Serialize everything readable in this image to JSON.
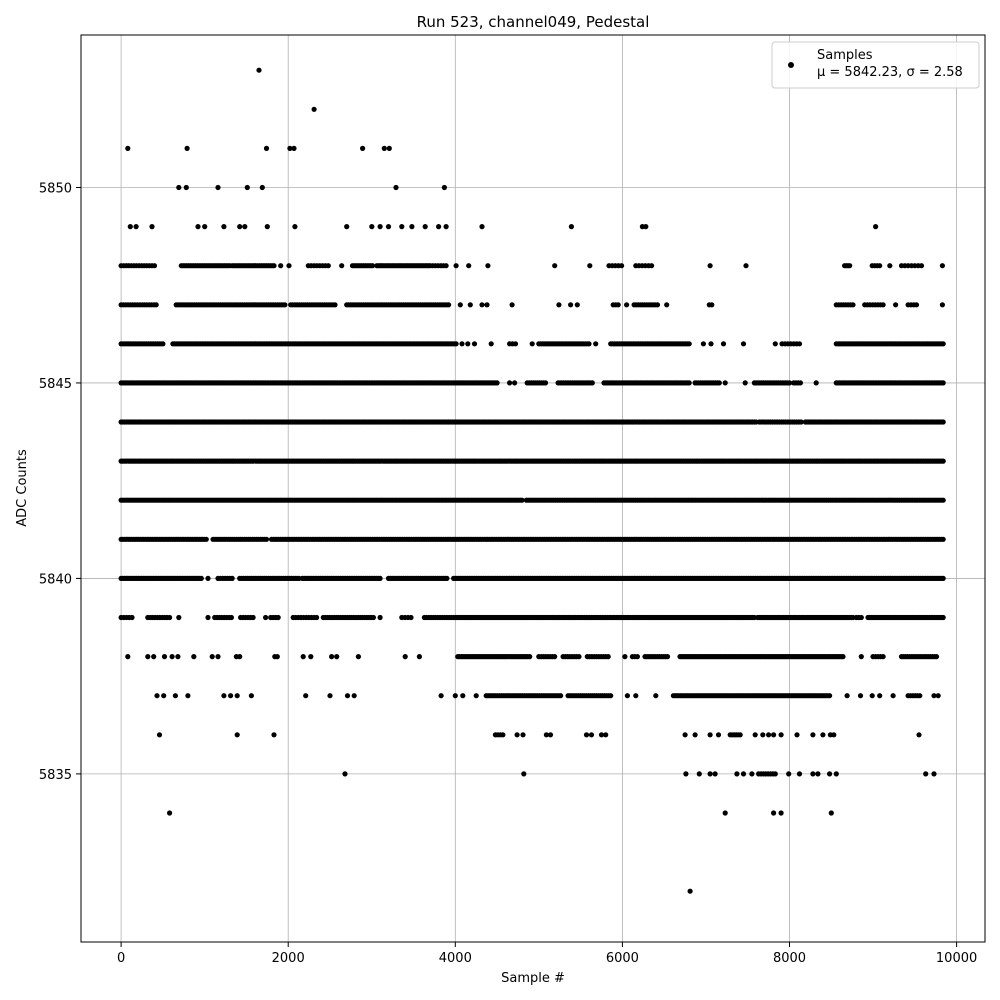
{
  "chart_data": {
    "type": "scatter",
    "title": "Run 523, channel049, Pedestal",
    "xlabel": "Sample #",
    "ylabel": "ADC Counts",
    "xlim": [
      -480,
      10340
    ],
    "ylim": [
      5830.7,
      5853.9
    ],
    "xticks": [
      0,
      2000,
      4000,
      6000,
      8000,
      10000
    ],
    "yticks": [
      5835,
      5840,
      5845,
      5850
    ],
    "grid": true,
    "legend": {
      "position": "top-right",
      "entries": [
        {
          "label": "Samples",
          "stats": "μ = 5842.23, σ = 2.58"
        }
      ]
    },
    "marker_color": "#000000",
    "levels": [
      {
        "y": 5853,
        "x": [
          1650
        ]
      },
      {
        "y": 5852,
        "x": [
          2310
        ]
      },
      {
        "y": 5851,
        "x": [
          80,
          790,
          1740,
          2020,
          2070,
          2890,
          3150,
          3210
        ]
      },
      {
        "y": 5850,
        "x": [
          690,
          780,
          1160,
          1510,
          1690,
          3290,
          3870
        ]
      },
      {
        "y": 5849,
        "x": [
          110,
          180,
          370,
          920,
          1000,
          1230,
          1420,
          1480,
          1750,
          2080,
          2700,
          3000,
          3100,
          3200,
          3360,
          3480,
          3640,
          3800,
          3890,
          4320,
          5390,
          6240,
          6280,
          9030
        ]
      },
      {
        "y": 5848,
        "x": [
          [
            0,
            400,
            14
          ],
          [
            720,
            1300,
            28
          ],
          [
            1330,
            1830,
            24
          ],
          1910,
          2010,
          [
            2240,
            2480,
            8
          ],
          2640,
          [
            2770,
            3010,
            12
          ],
          [
            3060,
            3700,
            32
          ],
          [
            3730,
            3890,
            6
          ],
          4010,
          4160,
          4390,
          5190,
          5610,
          [
            5840,
            5990,
            5
          ],
          [
            6160,
            6350,
            6
          ],
          7050,
          7480,
          [
            8660,
            8720,
            4
          ],
          [
            8990,
            9080,
            4
          ],
          9200,
          [
            9340,
            9580,
            7
          ],
          9830
        ]
      },
      {
        "y": 5847,
        "x": [
          [
            0,
            420,
            16
          ],
          [
            660,
            1960,
            60
          ],
          [
            2030,
            2560,
            22
          ],
          [
            2700,
            3920,
            55
          ],
          4060,
          4180,
          4320,
          4380,
          4680,
          5240,
          5380,
          5460,
          [
            5890,
            5950,
            3
          ],
          6050,
          [
            6140,
            6420,
            12
          ],
          6530,
          7040,
          7070,
          [
            8560,
            8760,
            8
          ],
          [
            8900,
            9120,
            8
          ],
          9270,
          [
            9420,
            9520,
            4
          ],
          9830
        ]
      },
      {
        "y": 5846,
        "x": [
          [
            0,
            500,
            24
          ],
          [
            620,
            4010,
            165
          ],
          4080,
          4150,
          4230,
          4430,
          [
            4650,
            4720,
            3
          ],
          4920,
          [
            5000,
            5600,
            30
          ],
          5680,
          [
            5860,
            6800,
            46
          ],
          6970,
          7060,
          7210,
          7450,
          7830,
          [
            7910,
            8120,
            7
          ],
          [
            8560,
            9840,
            64
          ]
        ]
      },
      {
        "y": 5845,
        "x": [
          [
            0,
            4500,
            225
          ],
          4650,
          4710,
          [
            4860,
            5080,
            10
          ],
          [
            5230,
            5640,
            20
          ],
          [
            5780,
            6800,
            50
          ],
          [
            6870,
            7160,
            14
          ],
          7230,
          7470,
          [
            7580,
            8000,
            20
          ],
          [
            8050,
            8130,
            4
          ],
          8320,
          [
            8560,
            9840,
            64
          ]
        ]
      },
      {
        "y": 5844,
        "x": [
          [
            0,
            7600,
            350
          ],
          [
            7640,
            8140,
            20
          ],
          [
            8190,
            9840,
            80
          ]
        ]
      },
      {
        "y": 5843,
        "x": [
          [
            0,
            9840,
            460
          ]
        ]
      },
      {
        "y": 5842,
        "x": [
          [
            0,
            4800,
            230
          ],
          [
            4850,
            9840,
            230
          ]
        ]
      },
      {
        "y": 5841,
        "x": [
          [
            0,
            1020,
            50
          ],
          [
            1100,
            1740,
            28
          ],
          [
            1800,
            9840,
            380
          ]
        ]
      },
      {
        "y": 5840,
        "x": [
          [
            0,
            960,
            48
          ],
          1040,
          [
            1160,
            1330,
            7
          ],
          [
            1420,
            2130,
            32
          ],
          [
            2170,
            3100,
            44
          ],
          [
            3200,
            3900,
            32
          ],
          [
            3980,
            9840,
            280
          ]
        ]
      },
      {
        "y": 5839,
        "x": [
          [
            0,
            130,
            5
          ],
          [
            320,
            580,
            10
          ],
          690,
          1040,
          [
            1120,
            1320,
            8
          ],
          [
            1430,
            1580,
            6
          ],
          1730,
          [
            1790,
            1880,
            4
          ],
          [
            2060,
            2340,
            10
          ],
          [
            2420,
            3020,
            24
          ],
          3100,
          [
            3360,
            3470,
            4
          ],
          [
            3630,
            3980,
            14
          ],
          [
            4000,
            7580,
            170
          ],
          [
            7620,
            8760,
            60
          ],
          [
            8800,
            8860,
            3
          ],
          [
            8940,
            9840,
            45
          ]
        ]
      },
      {
        "y": 5838,
        "x": [
          80,
          320,
          390,
          520,
          610,
          680,
          870,
          1090,
          1160,
          1380,
          1420,
          1840,
          1870,
          2180,
          2270,
          2520,
          2580,
          2840,
          3400,
          3570,
          [
            4030,
            4890,
            40
          ],
          [
            5000,
            5190,
            8
          ],
          [
            5290,
            5480,
            8
          ],
          [
            5580,
            5830,
            10
          ],
          6030,
          [
            6120,
            6180,
            3
          ],
          [
            6270,
            6540,
            12
          ],
          [
            6690,
            8640,
            95
          ],
          8860,
          [
            9000,
            9120,
            5
          ],
          [
            9340,
            9760,
            18
          ]
        ]
      },
      {
        "y": 5837,
        "x": [
          430,
          510,
          650,
          800,
          1230,
          1310,
          1390,
          1560,
          2210,
          2500,
          2710,
          2790,
          3830,
          4000,
          4090,
          4250,
          [
            4370,
            5260,
            40
          ],
          [
            5350,
            5860,
            22
          ],
          6060,
          6160,
          6400,
          [
            6610,
            8480,
            90
          ],
          8690,
          8850,
          8990,
          9080,
          9240,
          [
            9420,
            9560,
            6
          ],
          9730,
          9780
        ]
      },
      {
        "y": 5836,
        "x": [
          460,
          1390,
          1830,
          [
            4480,
            4570,
            4
          ],
          4740,
          4810,
          5090,
          5140,
          5570,
          5630,
          5750,
          5800,
          6750,
          6870,
          7050,
          7150,
          [
            7290,
            7410,
            6
          ],
          7590,
          7680,
          7750,
          7810,
          7900,
          8090,
          8280,
          8400,
          8490,
          8530,
          9550
        ]
      },
      {
        "y": 5835,
        "x": [
          2680,
          4820,
          6760,
          6920,
          7050,
          7110,
          7370,
          7450,
          7550,
          [
            7630,
            7830,
            8
          ],
          7990,
          8120,
          8280,
          8340,
          8480,
          8560,
          9630,
          9730
        ]
      },
      {
        "y": 5834,
        "x": [
          580,
          7230,
          7810,
          7900,
          8500
        ]
      },
      {
        "y": 5832,
        "x": [
          6810
        ]
      }
    ]
  }
}
